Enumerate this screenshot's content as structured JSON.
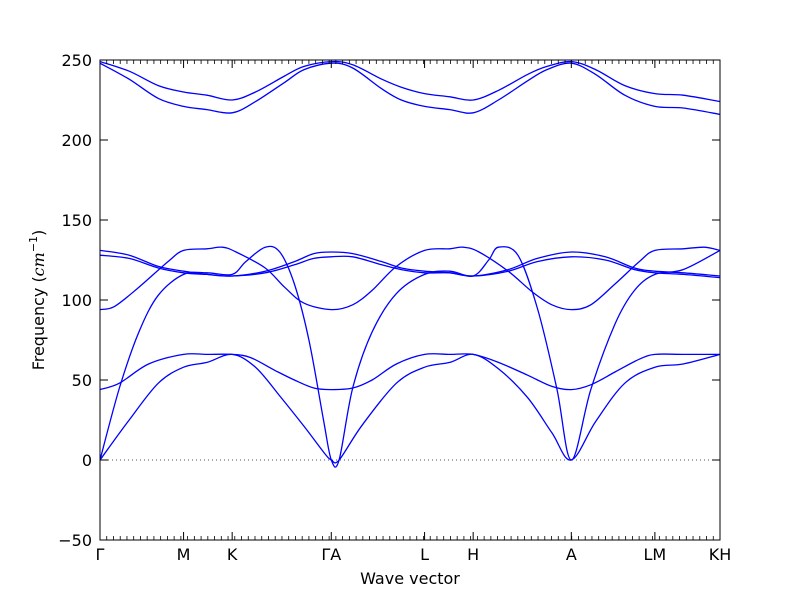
{
  "chart_data": {
    "type": "line",
    "title": "",
    "xlabel": "Wave vector",
    "ylabel_main": "Frequency (",
    "ylabel_unit": "cm",
    "ylabel_exp": "−1",
    "ylabel_close": ")",
    "ylim": [
      -50,
      250
    ],
    "yticks": [
      -50,
      0,
      50,
      100,
      150,
      200,
      250
    ],
    "xlim": [
      0,
      6.38
    ],
    "grid": false,
    "line_color": "#0000ff",
    "zero_line_color": "#555555",
    "zero_line_style": "dotted",
    "high_symmetry_points": [
      {
        "label": "Γ",
        "x": 0.0
      },
      {
        "label": "M",
        "x": 0.86
      },
      {
        "label": "K",
        "x": 1.36
      },
      {
        "label": "ΓA",
        "x": 2.38
      },
      {
        "label": "L",
        "x": 3.34
      },
      {
        "label": "H",
        "x": 3.84
      },
      {
        "label": "A",
        "x": 4.85
      },
      {
        "label": "LM",
        "x": 5.71
      },
      {
        "label": "KH",
        "x": 6.38
      }
    ],
    "series": [
      {
        "points": [
          [
            0,
            249
          ],
          [
            0.3,
            243
          ],
          [
            0.6,
            234
          ],
          [
            0.86,
            230
          ],
          [
            1.1,
            228
          ],
          [
            1.36,
            225
          ],
          [
            1.6,
            230
          ],
          [
            1.9,
            240
          ],
          [
            2.1,
            246
          ],
          [
            2.38,
            249
          ],
          [
            2.6,
            247
          ],
          [
            2.9,
            238
          ],
          [
            3.1,
            233
          ],
          [
            3.34,
            229
          ],
          [
            3.6,
            227
          ],
          [
            3.84,
            225
          ],
          [
            4.1,
            231
          ],
          [
            4.4,
            241
          ],
          [
            4.6,
            246
          ],
          [
            4.85,
            249
          ],
          [
            5.1,
            244
          ],
          [
            5.4,
            234
          ],
          [
            5.71,
            229
          ],
          [
            6.0,
            228
          ],
          [
            6.38,
            224
          ]
        ]
      },
      {
        "points": [
          [
            0,
            248
          ],
          [
            0.3,
            238
          ],
          [
            0.6,
            226
          ],
          [
            0.86,
            221
          ],
          [
            1.1,
            219
          ],
          [
            1.36,
            217
          ],
          [
            1.6,
            224
          ],
          [
            1.9,
            236
          ],
          [
            2.1,
            244
          ],
          [
            2.38,
            248
          ],
          [
            2.6,
            245
          ],
          [
            2.9,
            232
          ],
          [
            3.1,
            225
          ],
          [
            3.34,
            221
          ],
          [
            3.6,
            219
          ],
          [
            3.84,
            217
          ],
          [
            4.1,
            225
          ],
          [
            4.4,
            237
          ],
          [
            4.6,
            244
          ],
          [
            4.85,
            248
          ],
          [
            5.1,
            241
          ],
          [
            5.4,
            228
          ],
          [
            5.71,
            221
          ],
          [
            6.0,
            220
          ],
          [
            6.38,
            216
          ]
        ]
      },
      {
        "points": [
          [
            0,
            131
          ],
          [
            0.3,
            128
          ],
          [
            0.6,
            121
          ],
          [
            0.86,
            118
          ],
          [
            1.1,
            116
          ],
          [
            1.36,
            115
          ],
          [
            1.7,
            118
          ],
          [
            2.0,
            124
          ],
          [
            2.2,
            129
          ],
          [
            2.38,
            130
          ],
          [
            2.6,
            129
          ],
          [
            2.9,
            124
          ],
          [
            3.1,
            120
          ],
          [
            3.34,
            118
          ],
          [
            3.6,
            117
          ],
          [
            3.84,
            115
          ],
          [
            4.2,
            119
          ],
          [
            4.5,
            126
          ],
          [
            4.85,
            130
          ],
          [
            5.2,
            127
          ],
          [
            5.5,
            120
          ],
          [
            5.71,
            118
          ],
          [
            6.0,
            117
          ],
          [
            6.38,
            115
          ]
        ]
      },
      {
        "points": [
          [
            0,
            128
          ],
          [
            0.3,
            126
          ],
          [
            0.6,
            120
          ],
          [
            0.86,
            117
          ],
          [
            1.1,
            116
          ],
          [
            1.36,
            115
          ],
          [
            1.7,
            117
          ],
          [
            2.0,
            122
          ],
          [
            2.2,
            126
          ],
          [
            2.38,
            127
          ],
          [
            2.6,
            127
          ],
          [
            2.9,
            122
          ],
          [
            3.1,
            119
          ],
          [
            3.34,
            117
          ],
          [
            3.6,
            117
          ],
          [
            3.84,
            115
          ],
          [
            4.2,
            118
          ],
          [
            4.5,
            124
          ],
          [
            4.85,
            127
          ],
          [
            5.2,
            125
          ],
          [
            5.5,
            119
          ],
          [
            5.71,
            117
          ],
          [
            6.0,
            116
          ],
          [
            6.38,
            114
          ]
        ]
      },
      {
        "points": [
          [
            0,
            94
          ],
          [
            0.15,
            96
          ],
          [
            0.4,
            108
          ],
          [
            0.7,
            124
          ],
          [
            0.86,
            131
          ],
          [
            1.1,
            132
          ],
          [
            1.26,
            133
          ],
          [
            1.4,
            130
          ],
          [
            1.7,
            120
          ],
          [
            1.9,
            108
          ],
          [
            2.1,
            98
          ],
          [
            2.38,
            94
          ],
          [
            2.6,
            97
          ],
          [
            2.8,
            106
          ],
          [
            3.05,
            121
          ],
          [
            3.34,
            131
          ],
          [
            3.6,
            132
          ],
          [
            3.74,
            133
          ],
          [
            3.9,
            130
          ],
          [
            4.2,
            118
          ],
          [
            4.45,
            105
          ],
          [
            4.65,
            97
          ],
          [
            4.85,
            94
          ],
          [
            5.05,
            97
          ],
          [
            5.3,
            110
          ],
          [
            5.55,
            124
          ],
          [
            5.71,
            131
          ],
          [
            6.0,
            132
          ],
          [
            6.22,
            133
          ],
          [
            6.38,
            131
          ]
        ]
      },
      {
        "points": [
          [
            0,
            0
          ],
          [
            0.2,
            45
          ],
          [
            0.4,
            80
          ],
          [
            0.6,
            103
          ],
          [
            0.86,
            116
          ],
          [
            1.1,
            117
          ],
          [
            1.36,
            116
          ],
          [
            1.5,
            124
          ],
          [
            1.7,
            133
          ],
          [
            1.85,
            130
          ],
          [
            2.0,
            110
          ],
          [
            2.15,
            75
          ],
          [
            2.3,
            25
          ],
          [
            2.38,
            0
          ],
          [
            2.46,
            0
          ],
          [
            2.6,
            45
          ],
          [
            2.8,
            80
          ],
          [
            3.05,
            104
          ],
          [
            3.34,
            116
          ],
          [
            3.6,
            118
          ],
          [
            3.84,
            115
          ],
          [
            4.0,
            125
          ],
          [
            4.1,
            133
          ],
          [
            4.3,
            128
          ],
          [
            4.5,
            95
          ],
          [
            4.7,
            45
          ],
          [
            4.85,
            0
          ],
          [
            5.05,
            44
          ],
          [
            5.3,
            85
          ],
          [
            5.5,
            106
          ],
          [
            5.71,
            116
          ],
          [
            6.0,
            119
          ],
          [
            6.38,
            131
          ]
        ]
      },
      {
        "points": [
          [
            0,
            44
          ],
          [
            0.2,
            48
          ],
          [
            0.5,
            60
          ],
          [
            0.86,
            66
          ],
          [
            1.1,
            66
          ],
          [
            1.36,
            66
          ],
          [
            1.55,
            64
          ],
          [
            1.8,
            56
          ],
          [
            2.0,
            50
          ],
          [
            2.2,
            45
          ],
          [
            2.38,
            44
          ],
          [
            2.6,
            45
          ],
          [
            2.8,
            50
          ],
          [
            3.05,
            60
          ],
          [
            3.34,
            66
          ],
          [
            3.6,
            66
          ],
          [
            3.84,
            66
          ],
          [
            4.1,
            61
          ],
          [
            4.4,
            53
          ],
          [
            4.65,
            46
          ],
          [
            4.85,
            44
          ],
          [
            5.05,
            47
          ],
          [
            5.3,
            55
          ],
          [
            5.55,
            63
          ],
          [
            5.71,
            66
          ],
          [
            6.0,
            66
          ],
          [
            6.38,
            66
          ]
        ]
      },
      {
        "points": [
          [
            0,
            0
          ],
          [
            0.3,
            25
          ],
          [
            0.6,
            48
          ],
          [
            0.86,
            58
          ],
          [
            1.1,
            61
          ],
          [
            1.36,
            66
          ],
          [
            1.6,
            58
          ],
          [
            1.85,
            40
          ],
          [
            2.1,
            21
          ],
          [
            2.3,
            5
          ],
          [
            2.38,
            0
          ],
          [
            2.46,
            0
          ],
          [
            2.7,
            22
          ],
          [
            3.05,
            48
          ],
          [
            3.34,
            58
          ],
          [
            3.6,
            61
          ],
          [
            3.84,
            66
          ],
          [
            4.1,
            57
          ],
          [
            4.4,
            39
          ],
          [
            4.65,
            17
          ],
          [
            4.85,
            0
          ],
          [
            5.1,
            24
          ],
          [
            5.4,
            48
          ],
          [
            5.71,
            58
          ],
          [
            6.0,
            60
          ],
          [
            6.38,
            66
          ]
        ]
      }
    ]
  }
}
